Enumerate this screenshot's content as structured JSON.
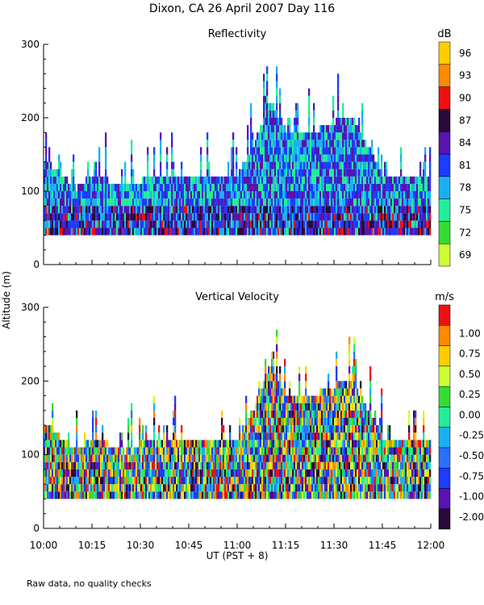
{
  "title": "Dixon, CA 26 April 2007  Day 116",
  "footer_note": "Raw data, no quality checks",
  "shared_ylabel": "Altitude  (m)",
  "chart_data": [
    {
      "type": "heatmap",
      "title": "Reflectivity",
      "xlabel": "UT  (PST + 8)",
      "ylabel": "Altitude  (m)",
      "xlim": [
        "10:00",
        "12:00"
      ],
      "ylim": [
        0,
        300
      ],
      "x_ticks": [
        "10:00",
        "10:15",
        "10:30",
        "10:45",
        "11:00",
        "11:15",
        "11:30",
        "11:45",
        "12:00"
      ],
      "y_ticks": [
        0,
        100,
        200,
        300
      ],
      "colorbar": {
        "unit": "dB",
        "tick_labels": [
          "69",
          "72",
          "75",
          "78",
          "81",
          "84",
          "87",
          "90",
          "93",
          "96"
        ],
        "colors": [
          "#ccff33",
          "#33dd33",
          "#22ee99",
          "#1ab0f0",
          "#1c3cff",
          "#5a12b0",
          "#2a0a38",
          "#ee1010",
          "#ff8a00",
          "#ffcc00"
        ]
      },
      "data_floor_m": 40,
      "top_of_echo_m": [
        {
          "time": "10:00",
          "alt": 140
        },
        {
          "time": "10:05",
          "alt": 120
        },
        {
          "time": "10:10",
          "alt": 100
        },
        {
          "time": "10:15",
          "alt": 120
        },
        {
          "time": "10:25",
          "alt": 100
        },
        {
          "time": "10:35",
          "alt": 120
        },
        {
          "time": "10:50",
          "alt": 120
        },
        {
          "time": "11:00",
          "alt": 120
        },
        {
          "time": "11:05",
          "alt": 160
        },
        {
          "time": "11:10",
          "alt": 220
        },
        {
          "time": "11:15",
          "alt": 180
        },
        {
          "time": "11:25",
          "alt": 180
        },
        {
          "time": "11:35",
          "alt": 200
        },
        {
          "time": "11:45",
          "alt": 120
        },
        {
          "time": "12:00",
          "alt": 120
        }
      ]
    },
    {
      "type": "heatmap",
      "title": "Vertical Velocity",
      "xlabel": "UT  (PST + 8)",
      "ylabel": "Altitude  (m)",
      "xlim": [
        "10:00",
        "12:00"
      ],
      "ylim": [
        0,
        300
      ],
      "x_ticks": [
        "10:00",
        "10:15",
        "10:30",
        "10:45",
        "11:00",
        "11:15",
        "11:30",
        "11:45",
        "12:00"
      ],
      "y_ticks": [
        0,
        100,
        200,
        300
      ],
      "colorbar": {
        "unit": "m/s",
        "tick_labels": [
          "-2.00",
          "-1.00",
          "-0.75",
          "-0.50",
          "-0.25",
          "0.00",
          "0.25",
          "0.50",
          "0.75",
          "1.00"
        ],
        "colors": [
          "#2a0a38",
          "#5a12b0",
          "#1c3cff",
          "#2a70ff",
          "#1ab0f0",
          "#22ee99",
          "#33dd33",
          "#ccff33",
          "#ffcc00",
          "#ff8a00",
          "#ee1010"
        ]
      },
      "data_floor_m": 40,
      "top_of_echo_m": [
        {
          "time": "10:00",
          "alt": 140
        },
        {
          "time": "10:05",
          "alt": 120
        },
        {
          "time": "10:10",
          "alt": 100
        },
        {
          "time": "10:15",
          "alt": 120
        },
        {
          "time": "10:25",
          "alt": 100
        },
        {
          "time": "10:35",
          "alt": 120
        },
        {
          "time": "10:50",
          "alt": 120
        },
        {
          "time": "11:00",
          "alt": 120
        },
        {
          "time": "11:05",
          "alt": 160
        },
        {
          "time": "11:10",
          "alt": 220
        },
        {
          "time": "11:15",
          "alt": 180
        },
        {
          "time": "11:25",
          "alt": 180
        },
        {
          "time": "11:35",
          "alt": 200
        },
        {
          "time": "11:45",
          "alt": 120
        },
        {
          "time": "12:00",
          "alt": 120
        }
      ]
    }
  ]
}
